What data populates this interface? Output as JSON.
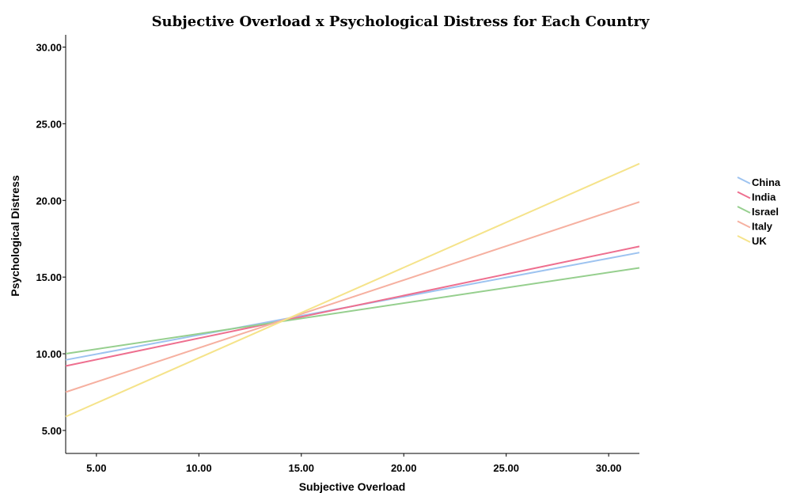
{
  "chart_data": {
    "type": "line",
    "title": "Subjective Overload x Psychological Distress for Each Country",
    "xlabel": "Subjective Overload",
    "ylabel": "Psychological Distress",
    "xlim": [
      3.5,
      31.5
    ],
    "ylim": [
      3.5,
      30.8
    ],
    "xticks": [
      5,
      10,
      15,
      20,
      25,
      30
    ],
    "yticks": [
      5,
      10,
      15,
      20,
      25,
      30
    ],
    "xtick_labels": [
      "5.00",
      "10.00",
      "15.00",
      "20.00",
      "25.00",
      "30.00"
    ],
    "ytick_labels": [
      "5.00",
      "10.00",
      "15.00",
      "20.00",
      "25.00",
      "30.00"
    ],
    "grid": false,
    "legend_position": "right",
    "series": [
      {
        "name": "China",
        "color": "#9dc3f0",
        "x": [
          3.5,
          31.5
        ],
        "y": [
          9.6,
          16.6
        ]
      },
      {
        "name": "India",
        "color": "#ee6f8f",
        "x": [
          3.5,
          31.5
        ],
        "y": [
          9.2,
          17.0
        ]
      },
      {
        "name": "Israel",
        "color": "#96cf8e",
        "x": [
          3.5,
          31.5
        ],
        "y": [
          10.0,
          15.6
        ]
      },
      {
        "name": "Italy",
        "color": "#f6b0a0",
        "x": [
          3.5,
          31.5
        ],
        "y": [
          7.5,
          19.9
        ]
      },
      {
        "name": "UK",
        "color": "#f5e38a",
        "x": [
          3.5,
          31.5
        ],
        "y": [
          5.9,
          22.4
        ]
      }
    ]
  }
}
